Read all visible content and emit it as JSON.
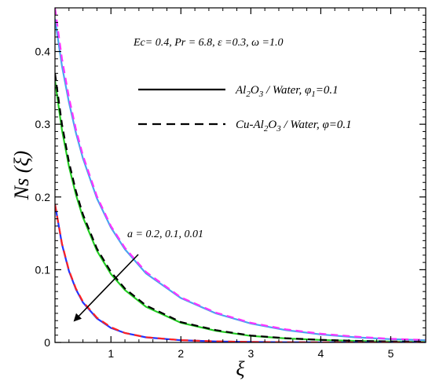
{
  "chart_data": {
    "type": "line",
    "title": "",
    "xlabel": "ξ",
    "ylabel": "Ns (ξ)",
    "xlim": [
      0.2,
      5.5
    ],
    "ylim": [
      0,
      0.46
    ],
    "x_ticks": [
      1,
      2,
      3,
      4,
      5
    ],
    "x_tick_labels": [
      "1",
      "2",
      "3",
      "4",
      "5"
    ],
    "y_ticks": [
      0,
      0.1,
      0.2,
      0.3,
      0.4
    ],
    "y_tick_labels": [
      "0",
      "0.1",
      "0.2",
      "0.3",
      "0.4"
    ],
    "grid": false,
    "parameter_note": "Ec= 0.4, Pr = 6.8, ε =0.3, ω =1.0",
    "legend": {
      "placement": "top-right",
      "entries": [
        {
          "style": "solid",
          "label": "Al2O3 / Water,  φ1=0.1",
          "parts": [
            {
              "t": "Al"
            },
            {
              "t": "2",
              "s": "sub"
            },
            {
              "t": "O"
            },
            {
              "t": "3",
              "s": "sub"
            },
            {
              "t": " / Water,  φ"
            },
            {
              "t": "1",
              "s": "sub"
            },
            {
              "t": "=0.1"
            }
          ]
        },
        {
          "style": "dashed",
          "label": "Cu-Al2O3 / Water, φ=0.1",
          "parts": [
            {
              "t": "Cu-Al"
            },
            {
              "t": "2",
              "s": "sub"
            },
            {
              "t": "O"
            },
            {
              "t": "3",
              "s": "sub"
            },
            {
              "t": " / Water, φ=0.1"
            }
          ]
        }
      ]
    },
    "annotation": {
      "text": "a = 0.2, 0.1, 0.01",
      "arrow_direction": "toward lower-left (decreasing a)"
    },
    "x": [
      0.2,
      0.3,
      0.4,
      0.5,
      0.6,
      0.8,
      1.0,
      1.2,
      1.5,
      2.0,
      2.5,
      3.0,
      3.5,
      4.0,
      4.5,
      5.0,
      5.5
    ],
    "series": [
      {
        "color": "#4aa3f0",
        "dash": "solid",
        "values": [
          0.445,
          0.38,
          0.33,
          0.288,
          0.253,
          0.198,
          0.158,
          0.128,
          0.095,
          0.061,
          0.04,
          0.026,
          0.017,
          0.011,
          0.007,
          0.0045,
          0.003
        ]
      },
      {
        "color": "#ff33ff",
        "dash": "dashed",
        "values": [
          0.46,
          0.39,
          0.337,
          0.293,
          0.257,
          0.201,
          0.16,
          0.13,
          0.097,
          0.062,
          0.041,
          0.027,
          0.018,
          0.012,
          0.008,
          0.005,
          0.0035
        ]
      },
      {
        "color": "#22cc22",
        "dash": "solid",
        "values": [
          0.36,
          0.292,
          0.242,
          0.203,
          0.172,
          0.126,
          0.094,
          0.072,
          0.049,
          0.027,
          0.016,
          0.009,
          0.0055,
          0.0035,
          0.002,
          0.0013,
          0.0008
        ]
      },
      {
        "color": "#000000",
        "dash": "dashed",
        "values": [
          0.37,
          0.3,
          0.248,
          0.208,
          0.176,
          0.129,
          0.097,
          0.074,
          0.051,
          0.028,
          0.017,
          0.0095,
          0.0058,
          0.0036,
          0.0022,
          0.0014,
          0.0009
        ]
      },
      {
        "color": "#2233ff",
        "dash": "solid",
        "values": [
          0.19,
          0.135,
          0.098,
          0.073,
          0.055,
          0.033,
          0.02,
          0.013,
          0.007,
          0.003,
          0.0014,
          0.0006,
          0.0003,
          0.00015,
          0.0001,
          0.0,
          0.0
        ]
      },
      {
        "color": "#ff2222",
        "dash": "dashed",
        "values": [
          0.19,
          0.136,
          0.099,
          0.074,
          0.056,
          0.034,
          0.021,
          0.013,
          0.0072,
          0.0031,
          0.0015,
          0.0007,
          0.0003,
          0.00015,
          0.0001,
          0.0,
          0.0
        ]
      }
    ]
  }
}
